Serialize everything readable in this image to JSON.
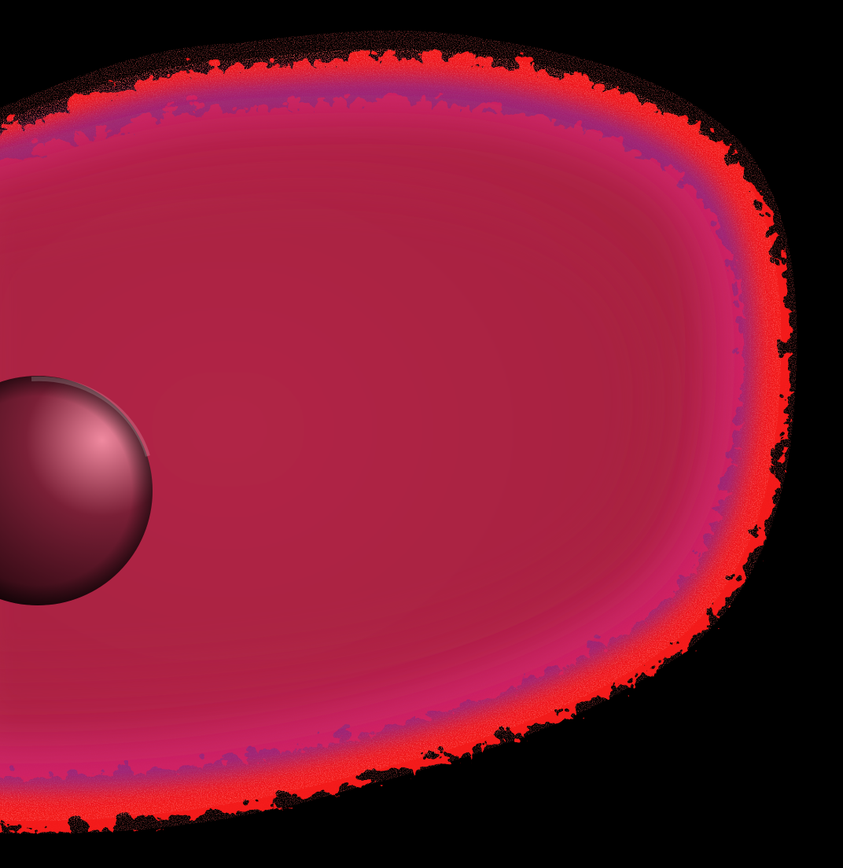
{
  "scene": {
    "subject": "cell-with-nucleus",
    "colors": {
      "background": "#000000",
      "outer_halo": "#ff1a1a",
      "fringe_magenta": "#e0245e",
      "fringe_violet": "#8a2a8f",
      "cytoplasm_light": "#c22a52",
      "cytoplasm_dark": "#a6203f",
      "sphere_highlight": "#f08aa0",
      "sphere_mid": "#7a1f36",
      "sphere_shadow": "#1a0308"
    }
  }
}
